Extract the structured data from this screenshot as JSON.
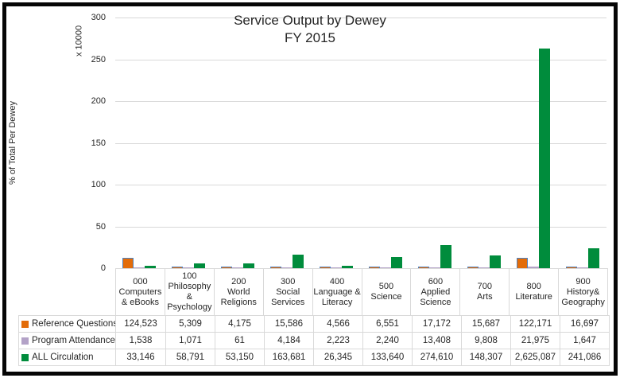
{
  "chart_data": {
    "type": "bar",
    "title": "Service Output by Dewey",
    "subtitle": "FY 2015",
    "ylabel": "% of Total Per Dewey",
    "unit_label": "x 10000",
    "ylim": [
      0,
      300
    ],
    "yticks": [
      0,
      50,
      100,
      150,
      200,
      250,
      300
    ],
    "value_scale": 10000,
    "grid": true,
    "legend_position": "table-left",
    "categories": [
      [
        "000",
        "Computers",
        "& eBooks"
      ],
      [
        "100",
        "Philosophy",
        "&",
        "Psychology"
      ],
      [
        "200",
        "World",
        "Religions"
      ],
      [
        "300",
        "Social",
        "Services"
      ],
      [
        "400",
        "Language &",
        "Literacy"
      ],
      [
        "500",
        "Science"
      ],
      [
        "600",
        "Applied",
        "Science"
      ],
      [
        "700",
        "Arts"
      ],
      [
        "800",
        "Literature"
      ],
      [
        "900",
        "History&",
        "Geography"
      ]
    ],
    "series": [
      {
        "name": "Reference Questions",
        "color": "#e36c09",
        "border_color": "#4f81bd",
        "values": [
          124523,
          5309,
          4175,
          15586,
          4566,
          6551,
          17172,
          15687,
          122171,
          16697
        ],
        "display": [
          "124,523",
          "5,309",
          "4,175",
          "15,586",
          "4,566",
          "6,551",
          "17,172",
          "15,687",
          "122,171",
          "16,697"
        ]
      },
      {
        "name": "Program Attendance",
        "color": "#b3a2c7",
        "values": [
          1538,
          1071,
          61,
          4184,
          2223,
          2240,
          13408,
          9808,
          21975,
          1647
        ],
        "display": [
          "1,538",
          "1,071",
          "61",
          "4,184",
          "2,223",
          "2,240",
          "13,408",
          "9,808",
          "21,975",
          "1,647"
        ]
      },
      {
        "name": "ALL Circulation",
        "color": "#008c3c",
        "values": [
          33146,
          58791,
          53150,
          163681,
          26345,
          133640,
          274610,
          148307,
          2625087,
          241086
        ],
        "display": [
          "33,146",
          "58,791",
          "53,150",
          "163,681",
          "26,345",
          "133,640",
          "274,610",
          "148,307",
          "2,625,087",
          "241,086"
        ]
      }
    ]
  }
}
